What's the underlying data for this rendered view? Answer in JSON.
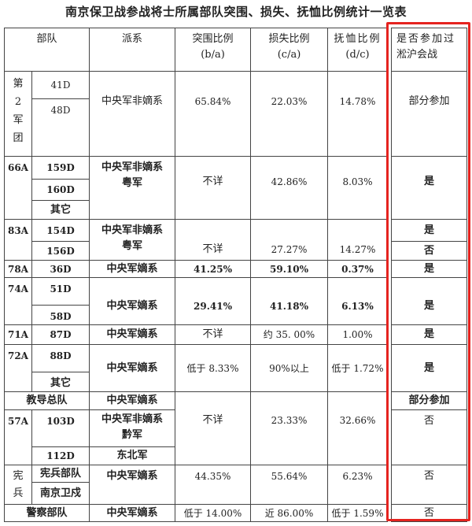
{
  "title": "南京保卫战参战将士所属部队突围、损失、抚恤比例统计一览表",
  "headers": {
    "unit": "部队",
    "faction": "派系",
    "breakout": "突围比例",
    "breakout_formula": "(b/a)",
    "loss": "损失比例",
    "loss_formula": "(c/a)",
    "pension": "抚恤比例",
    "pension_formula": "(d/c)",
    "songhu_1": "是否参加过",
    "songhu_2": "淞沪会战"
  },
  "rows": {
    "army2": {
      "unit_chars": [
        "第",
        "2",
        "军",
        "团"
      ],
      "divisions": [
        "41D",
        "48D"
      ],
      "faction": "中央军非嫡系",
      "breakout": "65.84%",
      "loss": "22.03%",
      "pension": "14.78%",
      "songhu": "部分参加"
    },
    "a66": {
      "unit": "66A",
      "divisions": [
        "159D",
        "160D",
        "其它"
      ],
      "faction_1": "中央军非嫡系",
      "faction_2": "粤军",
      "breakout": "不详",
      "loss": "42.86%",
      "pension": "8.03%",
      "songhu": "是"
    },
    "a83": {
      "unit": "83A",
      "divisions": [
        "154D",
        "156D"
      ],
      "faction_1": "中央军非嫡系",
      "faction_2": "粤军",
      "breakout": "不详",
      "loss": "27.27%",
      "pension": "14.27%",
      "songhu": [
        "是",
        "否"
      ]
    },
    "a78": {
      "unit": "78A",
      "divisions": [
        "36D"
      ],
      "faction": "中央军嫡系",
      "breakout": "41.25%",
      "loss": "59.10%",
      "pension": "0.37%",
      "songhu": "是"
    },
    "a74": {
      "unit": "74A",
      "divisions": [
        "51D",
        "58D"
      ],
      "faction": "中央军嫡系",
      "breakout": "29.41%",
      "loss": "41.18%",
      "pension": "6.13%",
      "songhu": "是"
    },
    "a71": {
      "unit": "71A",
      "divisions": [
        "87D"
      ],
      "faction": "中央军嫡系",
      "breakout": "不详",
      "loss": "约 35. 00%",
      "pension": "1.00%",
      "songhu": "是"
    },
    "a72": {
      "unit": "72A",
      "divisions": [
        "88D",
        "其它"
      ],
      "faction": "中央军嫡系",
      "breakout": "低于 8.33%",
      "loss": "90%以上",
      "pension": "低于 1.72%",
      "songhu": "是"
    },
    "training": {
      "unit": "教导总队",
      "faction": "中央军嫡系",
      "songhu": "部分参加"
    },
    "a57": {
      "unit": "57A",
      "divisions": [
        "103D",
        "112D"
      ],
      "faction_1": "中央军非嫡系",
      "faction_2": "黔军",
      "faction_3": "东北军",
      "songhu": "否"
    },
    "training_57_shared": {
      "breakout": "不详",
      "loss": "23.33%",
      "pension": "32.66%"
    },
    "mp": {
      "unit_chars": [
        "宪",
        "兵"
      ],
      "divisions": [
        "宪兵部队",
        "南京卫戍"
      ],
      "faction": "中央军嫡系",
      "breakout": "44.35%",
      "loss": "55.64%",
      "pension": "6.23%",
      "songhu": "否"
    },
    "police": {
      "unit": "警察部队",
      "faction": "中央军嫡系",
      "breakout": "低于 14.00%",
      "loss": "近 86.00%",
      "pension": "低于 1.59%",
      "songhu": "否"
    }
  },
  "colors": {
    "highlight_box": "#e5231f",
    "grid": "#444444"
  }
}
